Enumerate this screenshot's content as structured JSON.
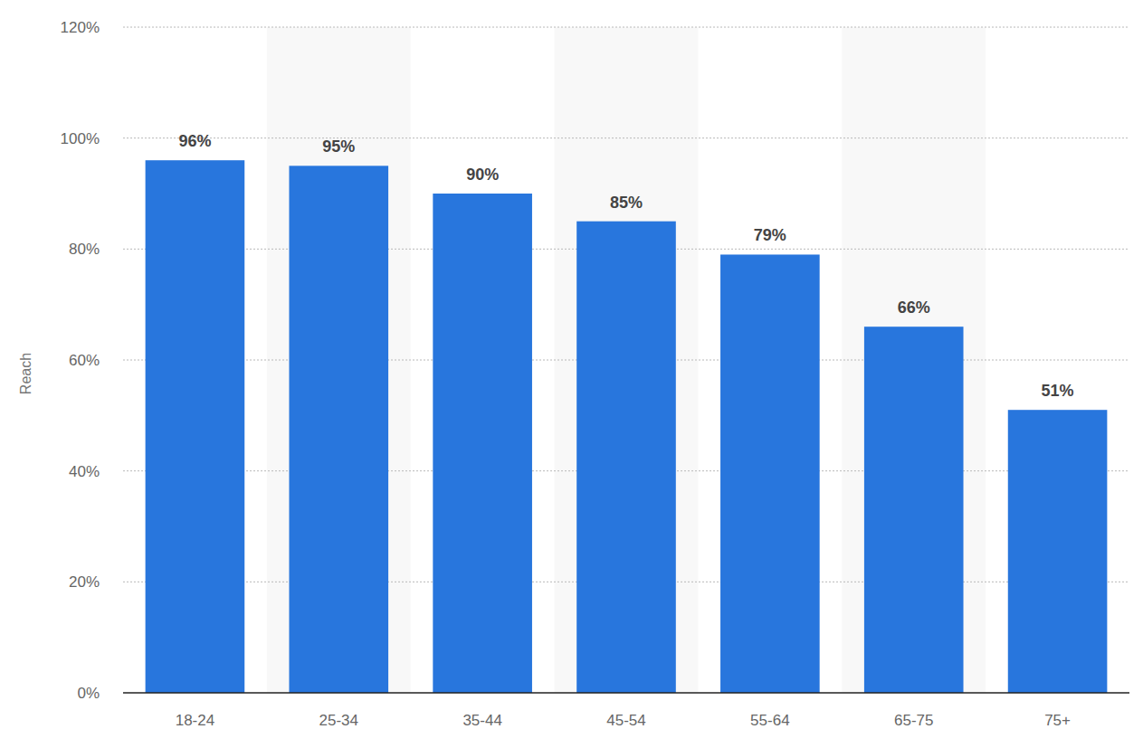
{
  "chart_data": {
    "type": "bar",
    "y_label": "Reach",
    "categories": [
      "18-24",
      "25-34",
      "35-44",
      "45-54",
      "55-64",
      "65-75",
      "75+"
    ],
    "values": [
      96,
      95,
      90,
      85,
      79,
      66,
      51
    ],
    "value_labels": [
      "96%",
      "95%",
      "90%",
      "85%",
      "79%",
      "66%",
      "51%"
    ],
    "color": "#2876dd",
    "ylim": [
      0,
      120
    ],
    "yticks": [
      {
        "value": 0,
        "label": "0%"
      },
      {
        "value": 20,
        "label": "20%"
      },
      {
        "value": 40,
        "label": "40%"
      },
      {
        "value": 60,
        "label": "60%"
      },
      {
        "value": 80,
        "label": "80%"
      },
      {
        "value": 100,
        "label": "100%"
      },
      {
        "value": 120,
        "label": "120%"
      }
    ],
    "grid": true,
    "data_labels": true
  }
}
